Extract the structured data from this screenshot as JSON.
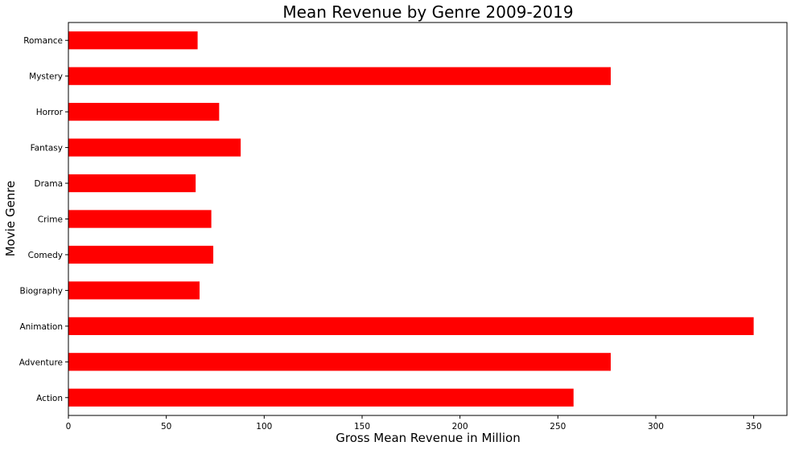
{
  "chart_data": {
    "type": "bar",
    "orientation": "horizontal",
    "title": "Mean Revenue by Genre 2009-2019",
    "xlabel": "Gross Mean Revenue in Million",
    "ylabel": "Movie Genre",
    "categories": [
      "Action",
      "Adventure",
      "Animation",
      "Biography",
      "Comedy",
      "Crime",
      "Drama",
      "Fantasy",
      "Horror",
      "Mystery",
      "Romance"
    ],
    "values": [
      258,
      277,
      350,
      67,
      74,
      73,
      65,
      88,
      77,
      277,
      66
    ],
    "xlim": [
      0,
      367
    ],
    "xticks": [
      0,
      50,
      100,
      150,
      200,
      250,
      300,
      350
    ],
    "bar_color": "#ff0000",
    "grid": false
  }
}
